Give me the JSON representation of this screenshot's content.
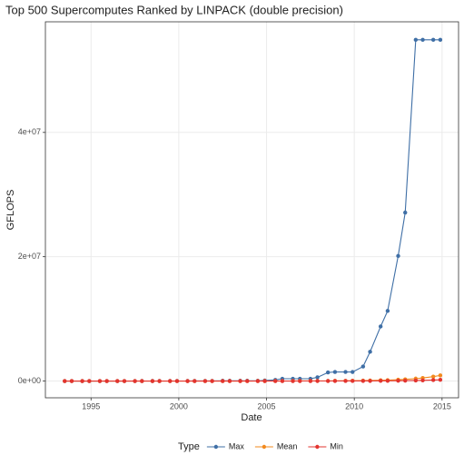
{
  "chart_data": {
    "type": "line",
    "title": "Top 500 Supercomputes Ranked by LINPACK (double precision)",
    "x_label": "Date",
    "y_label": "GFLOPS",
    "legend_title": "Type",
    "legend_position": "bottom",
    "grid": true,
    "x": [
      1993.5,
      1993.9,
      1994.5,
      1994.9,
      1995.5,
      1995.9,
      1996.5,
      1996.9,
      1997.5,
      1997.9,
      1998.5,
      1998.9,
      1999.5,
      1999.9,
      2000.5,
      2000.9,
      2001.5,
      2001.9,
      2002.5,
      2002.9,
      2003.5,
      2003.9,
      2004.5,
      2004.9,
      2005.5,
      2005.9,
      2006.5,
      2006.9,
      2007.5,
      2007.9,
      2008.5,
      2008.9,
      2009.5,
      2009.9,
      2010.5,
      2010.9,
      2011.5,
      2011.9,
      2012.5,
      2012.9,
      2013.5,
      2013.9,
      2014.5,
      2014.9
    ],
    "xlim": [
      1992.4,
      2015.94
    ],
    "xticks": [
      1995,
      2000,
      2005,
      2010,
      2015
    ],
    "ylim": [
      -2700000,
      57800000
    ],
    "yticks": [
      {
        "value": 0,
        "label": "0e+00"
      },
      {
        "value": 20000000,
        "label": "2e+07"
      },
      {
        "value": 40000000,
        "label": "4e+07"
      }
    ],
    "series": [
      {
        "name": "Max",
        "color": "#3f6fa6",
        "values": [
          131,
          236,
          236,
          236,
          236,
          236,
          614,
          614,
          1453,
          1830,
          1830,
          1830,
          3207,
          3154,
          3154,
          12288,
          12288,
          12288,
          40960,
          40960,
          40960,
          40960,
          40960,
          91750,
          183500,
          367000,
          367000,
          367000,
          367000,
          596400,
          1375800,
          1456700,
          1456700,
          1456700,
          2331000,
          4701000,
          8774000,
          11280000,
          20130000,
          27110000,
          54900000,
          54900000,
          54900000,
          54900000
        ]
      },
      {
        "name": "Mean",
        "color": "#f28a1e",
        "values": [
          2.2,
          2.8,
          4.0,
          5.1,
          7.3,
          9.3,
          13,
          17,
          24,
          31,
          45,
          57,
          82,
          104,
          150,
          191,
          274,
          349,
          502,
          639,
          920,
          1170,
          1680,
          2140,
          3070,
          3910,
          5630,
          7160,
          10300,
          13100,
          18900,
          24000,
          34500,
          43900,
          63100,
          80300,
          116000,
          147000,
          211000,
          269000,
          387000,
          492000,
          707000,
          900000
        ]
      },
      {
        "name": "Min",
        "color": "#e3342f",
        "values": [
          0.48,
          0.6,
          0.88,
          1.1,
          1.6,
          2.0,
          2.9,
          3.7,
          5.3,
          6.8,
          9.9,
          12.5,
          18,
          23,
          33,
          42,
          60,
          77,
          110,
          140,
          200,
          260,
          370,
          470,
          680,
          860,
          1240,
          1600,
          2300,
          2900,
          4200,
          5300,
          7600,
          9700,
          13900,
          17700,
          25500,
          32000,
          46000,
          59000,
          85000,
          108000,
          155000,
          198000
        ]
      }
    ]
  }
}
